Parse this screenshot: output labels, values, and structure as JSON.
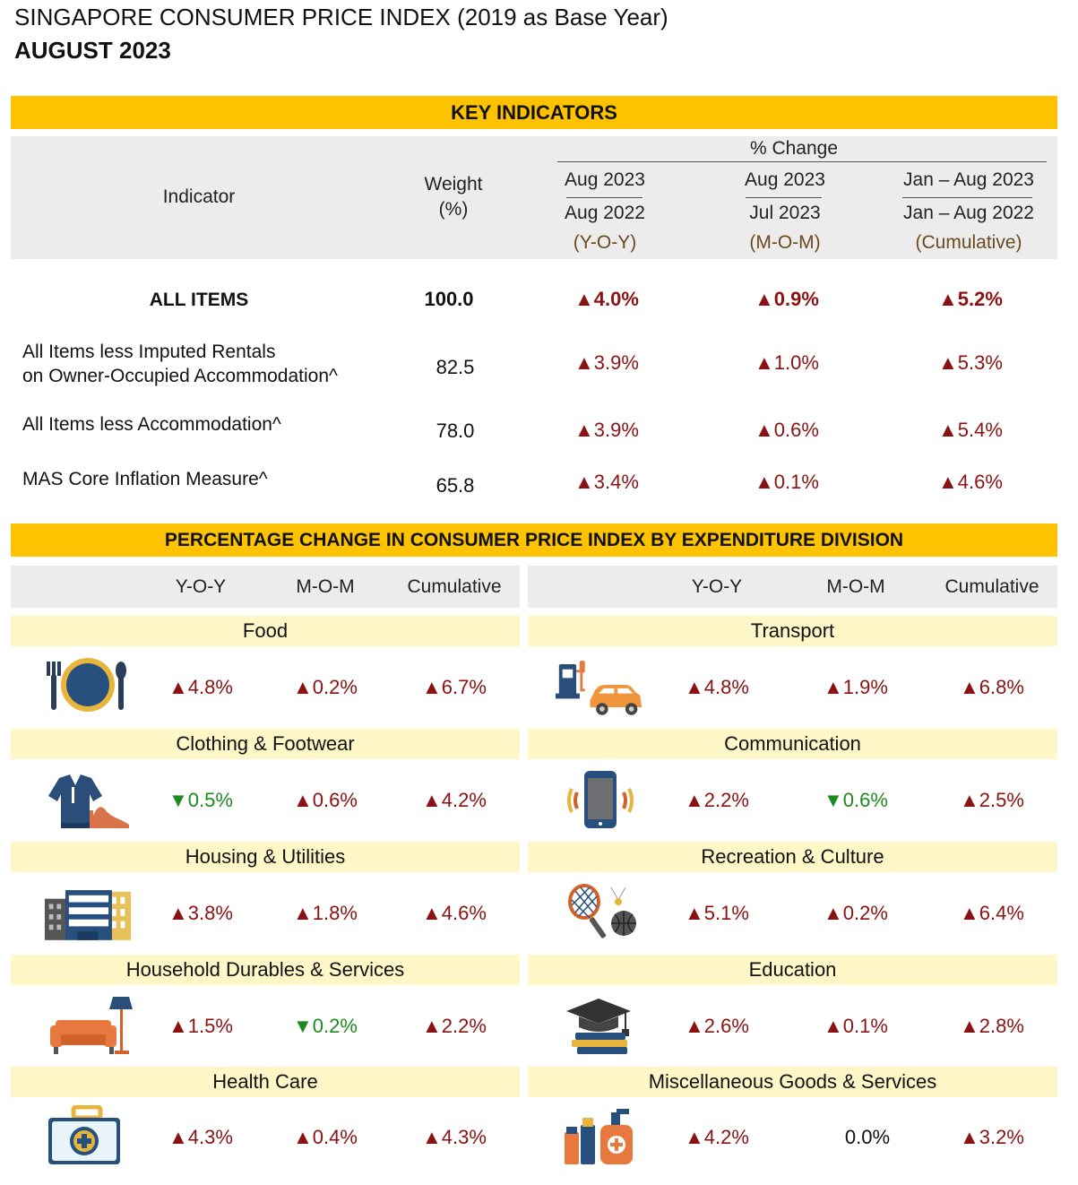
{
  "title": {
    "line1": "SINGAPORE CONSUMER PRICE INDEX (2019 as Base Year)",
    "line2": "AUGUST 2023"
  },
  "key_indicators": {
    "band": "KEY INDICATORS",
    "header": {
      "indicator": "Indicator",
      "weight_line1": "Weight",
      "weight_line2": "(%)",
      "pct_change": "% Change",
      "columns": [
        {
          "top": "Aug 2023",
          "bottom": "Aug 2022",
          "tag": "(Y-O-Y)"
        },
        {
          "top": "Aug 2023",
          "bottom": "Jul 2023",
          "tag": "(M-O-M)"
        },
        {
          "top": "Jan – Aug 2023",
          "bottom": "Jan – Aug 2022",
          "tag": "(Cumulative)"
        }
      ]
    },
    "rows": [
      {
        "label": "ALL ITEMS",
        "weight": "100.0",
        "yoy": "▲4.0%",
        "mom": "▲0.9%",
        "cum": "▲5.2%"
      },
      {
        "label_line1": "All Items less Imputed Rentals",
        "label_line2": "on Owner-Occupied Accommodation^",
        "weight": "82.5",
        "yoy": "▲3.9%",
        "mom": "▲1.0%",
        "cum": "▲5.3%"
      },
      {
        "label": "All Items less Accommodation^",
        "weight": "78.0",
        "yoy": "▲3.9%",
        "mom": "▲0.6%",
        "cum": "▲5.4%"
      },
      {
        "label": "MAS Core Inflation Measure^",
        "weight": "65.8",
        "yoy": "▲3.4%",
        "mom": "▲0.1%",
        "cum": "▲4.6%"
      }
    ]
  },
  "divisions": {
    "band": "PERCENTAGE CHANGE IN CONSUMER PRICE INDEX BY EXPENDITURE DIVISION",
    "col_headers": {
      "yoy": "Y-O-Y",
      "mom": "M-O-M",
      "cum": "Cumulative"
    },
    "left": [
      {
        "name": "Food",
        "icon": "dining-icon",
        "yoy": "▲4.8%",
        "mom": "▲0.2%",
        "cum": "▲6.7%"
      },
      {
        "name": "Clothing & Footwear",
        "icon": "shirt-shoe-icon",
        "yoy": "▼0.5%",
        "mom": "▲0.6%",
        "cum": "▲4.2%"
      },
      {
        "name": "Housing & Utilities",
        "icon": "buildings-icon",
        "yoy": "▲3.8%",
        "mom": "▲1.8%",
        "cum": "▲4.6%"
      },
      {
        "name": "Household Durables & Services",
        "icon": "sofa-lamp-icon",
        "yoy": "▲1.5%",
        "mom": "▼0.2%",
        "cum": "▲2.2%"
      },
      {
        "name": "Health Care",
        "icon": "medical-kit-icon",
        "yoy": "▲4.3%",
        "mom": "▲0.4%",
        "cum": "▲4.3%"
      }
    ],
    "right": [
      {
        "name": "Transport",
        "icon": "fuel-car-icon",
        "yoy": "▲4.8%",
        "mom": "▲1.9%",
        "cum": "▲6.8%"
      },
      {
        "name": "Communication",
        "icon": "smartphone-icon",
        "yoy": "▲2.2%",
        "mom": "▼0.6%",
        "cum": "▲2.5%"
      },
      {
        "name": "Recreation & Culture",
        "icon": "racket-ball-icon",
        "yoy": "▲5.1%",
        "mom": "▲0.2%",
        "cum": "▲6.4%"
      },
      {
        "name": "Education",
        "icon": "graduation-cap-icon",
        "yoy": "▲2.6%",
        "mom": "▲0.1%",
        "cum": "▲2.8%"
      },
      {
        "name": "Miscellaneous Goods & Services",
        "icon": "toiletries-icon",
        "yoy": "▲4.2%",
        "mom": "0.0%",
        "cum": "▲3.2%"
      }
    ]
  },
  "colors": {
    "band": "#fdc300",
    "division_band": "#fff7c7",
    "header_grey": "#ececec",
    "increase": "#8b1212",
    "decrease": "#1e8a1e"
  }
}
